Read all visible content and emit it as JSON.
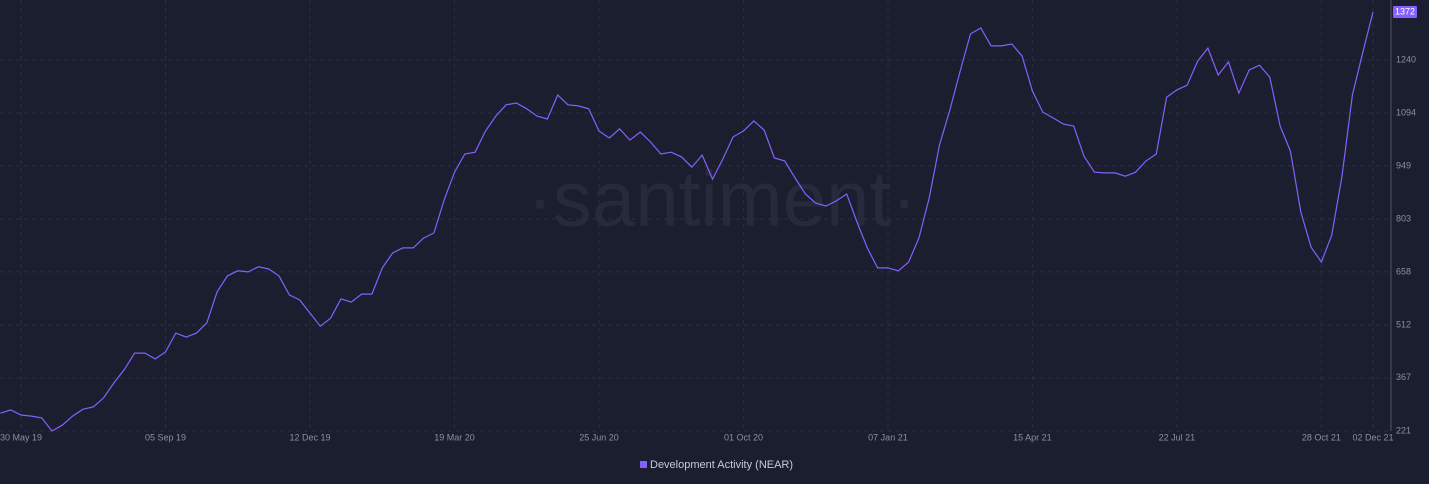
{
  "chart_data": {
    "type": "line",
    "watermark": "·santiment·",
    "categories": [
      null,
      null,
      "30 May 19",
      null,
      null,
      null,
      null,
      null,
      null,
      null,
      null,
      null,
      null,
      null,
      null,
      null,
      "05 Sep 19",
      null,
      null,
      null,
      null,
      null,
      null,
      null,
      null,
      null,
      null,
      null,
      null,
      null,
      "12 Dec 19",
      null,
      null,
      null,
      null,
      null,
      null,
      null,
      null,
      null,
      null,
      null,
      null,
      null,
      "19 Mar 20",
      null,
      null,
      null,
      null,
      null,
      null,
      null,
      null,
      null,
      null,
      null,
      null,
      null,
      "25 Jun 20",
      null,
      null,
      null,
      null,
      null,
      null,
      null,
      null,
      null,
      null,
      null,
      null,
      null,
      "01 Oct 20",
      null,
      null,
      null,
      null,
      null,
      null,
      null,
      null,
      null,
      null,
      null,
      null,
      null,
      "07 Jan 21",
      null,
      null,
      null,
      null,
      null,
      null,
      null,
      null,
      null,
      null,
      null,
      null,
      null,
      "15 Apr 21",
      null,
      null,
      null,
      null,
      null,
      null,
      null,
      null,
      null,
      null,
      null,
      null,
      null,
      "22 Jul 21",
      null,
      null,
      null,
      null,
      null,
      null,
      null,
      null,
      null,
      null,
      null,
      null,
      null,
      "28 Oct 21",
      null,
      null,
      null,
      null,
      "02 Dec 21"
    ],
    "series": [
      {
        "name": "Development Activity (NEAR)",
        "color": "#8360ff",
        "values": [
          270,
          279,
          265,
          262,
          257,
          221,
          237,
          262,
          281,
          287,
          312,
          353,
          389,
          435,
          435,
          419,
          438,
          490,
          479,
          490,
          518,
          603,
          647,
          661,
          658,
          672,
          666,
          647,
          595,
          581,
          545,
          509,
          531,
          584,
          575,
          597,
          597,
          669,
          710,
          724,
          724,
          751,
          765,
          856,
          932,
          982,
          987,
          1045,
          1086,
          1117,
          1122,
          1106,
          1086,
          1078,
          1144,
          1117,
          1114,
          1106,
          1045,
          1026,
          1051,
          1020,
          1042,
          1015,
          982,
          987,
          974,
          946,
          979,
          913,
          968,
          1029,
          1045,
          1073,
          1048,
          971,
          963,
          916,
          872,
          847,
          839,
          853,
          872,
          795,
          724,
          669,
          669,
          661,
          685,
          751,
          861,
          1007,
          1103,
          1210,
          1312,
          1328,
          1279,
          1279,
          1284,
          1251,
          1155,
          1097,
          1081,
          1064,
          1059,
          976,
          932,
          930,
          930,
          921,
          932,
          963,
          982,
          1138,
          1158,
          1171,
          1237,
          1273,
          1199,
          1235,
          1149,
          1213,
          1226,
          1193,
          1059,
          990,
          823,
          726,
          685,
          759,
          921,
          1144,
          1260,
          1372
        ]
      }
    ],
    "ylim": [
      221,
      1405
    ],
    "yticks": [
      221,
      367,
      512,
      658,
      803,
      949,
      1094,
      1240
    ],
    "grid": true,
    "legend": "bottom"
  }
}
